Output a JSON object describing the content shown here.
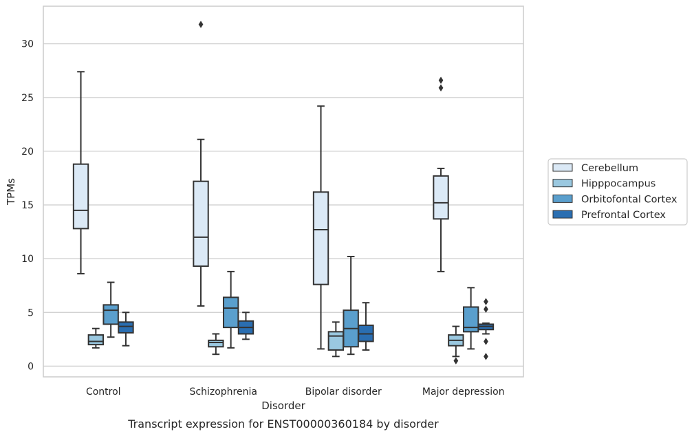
{
  "caption": "Transcript expression for ENST00000360184 by disorder",
  "colors": {
    "Cerebellum": "#dbe9f6",
    "Hipppocampus": "#9ac8e0",
    "Orbitofontal Cortex": "#5a9fcd",
    "Prefrontal Cortex": "#2a6eb1"
  },
  "chart_data": {
    "type": "box",
    "xlabel": "Disorder",
    "ylabel": "TPMs",
    "ylim": [
      -1,
      33.5
    ],
    "yticks": [
      0,
      5,
      10,
      15,
      20,
      25,
      30
    ],
    "grid": "horizontal",
    "legend_position": "right",
    "categories": [
      "Control",
      "Schizophrenia",
      "Bipolar disorder",
      "Major depression"
    ],
    "series": [
      {
        "name": "Cerebellum",
        "boxes": [
          {
            "whislo": 8.6,
            "q1": 12.8,
            "med": 14.5,
            "q3": 18.8,
            "whishi": 27.4,
            "fliers": []
          },
          {
            "whislo": 5.6,
            "q1": 9.3,
            "med": 12.0,
            "q3": 17.2,
            "whishi": 21.1,
            "fliers": [
              31.8
            ]
          },
          {
            "whislo": 1.6,
            "q1": 7.6,
            "med": 12.7,
            "q3": 16.2,
            "whishi": 24.2,
            "fliers": []
          },
          {
            "whislo": 8.8,
            "q1": 13.7,
            "med": 15.2,
            "q3": 17.7,
            "whishi": 18.4,
            "fliers": [
              26.6,
              25.9
            ]
          }
        ]
      },
      {
        "name": "Hipppocampus",
        "boxes": [
          {
            "whislo": 1.7,
            "q1": 2.0,
            "med": 2.3,
            "q3": 2.9,
            "whishi": 3.5,
            "fliers": []
          },
          {
            "whislo": 1.1,
            "q1": 1.8,
            "med": 2.2,
            "q3": 2.4,
            "whishi": 3.0,
            "fliers": []
          },
          {
            "whislo": 0.9,
            "q1": 1.5,
            "med": 2.8,
            "q3": 3.2,
            "whishi": 4.1,
            "fliers": []
          },
          {
            "whislo": 0.9,
            "q1": 1.9,
            "med": 2.4,
            "q3": 2.9,
            "whishi": 3.7,
            "fliers": [
              0.5
            ]
          }
        ]
      },
      {
        "name": "Orbitofontal Cortex",
        "boxes": [
          {
            "whislo": 2.7,
            "q1": 3.9,
            "med": 5.2,
            "q3": 5.7,
            "whishi": 7.8,
            "fliers": []
          },
          {
            "whislo": 1.7,
            "q1": 3.6,
            "med": 5.4,
            "q3": 6.4,
            "whishi": 8.8,
            "fliers": []
          },
          {
            "whislo": 1.1,
            "q1": 1.8,
            "med": 3.5,
            "q3": 5.2,
            "whishi": 10.2,
            "fliers": []
          },
          {
            "whislo": 1.6,
            "q1": 3.2,
            "med": 3.6,
            "q3": 5.5,
            "whishi": 7.3,
            "fliers": []
          }
        ]
      },
      {
        "name": "Prefrontal Cortex",
        "boxes": [
          {
            "whislo": 1.9,
            "q1": 3.1,
            "med": 3.7,
            "q3": 4.1,
            "whishi": 5.0,
            "fliers": []
          },
          {
            "whislo": 2.5,
            "q1": 3.0,
            "med": 3.6,
            "q3": 4.2,
            "whishi": 5.0,
            "fliers": []
          },
          {
            "whislo": 1.5,
            "q1": 2.3,
            "med": 3.0,
            "q3": 3.8,
            "whishi": 5.9,
            "fliers": []
          },
          {
            "whislo": 3.0,
            "q1": 3.4,
            "med": 3.7,
            "q3": 3.9,
            "whishi": 4.0,
            "fliers": [
              6.0,
              5.3,
              2.3,
              0.9
            ]
          }
        ]
      }
    ]
  }
}
